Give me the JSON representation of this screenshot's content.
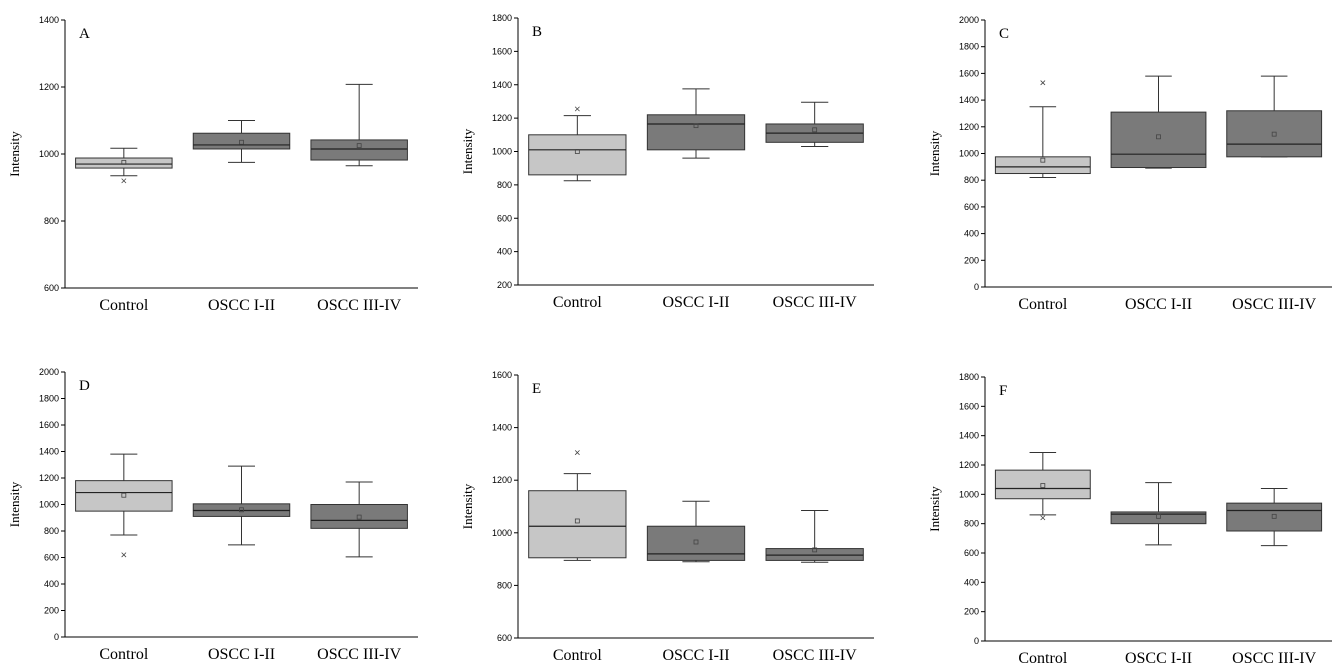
{
  "chart_data": [
    {
      "type": "box",
      "title": "A",
      "ylabel": "Intensity",
      "ylim": [
        600,
        1400
      ],
      "yticks": [
        600,
        800,
        1000,
        1200,
        1400
      ],
      "categories": [
        "Control",
        "OSCC I-II",
        "OSCC III-IV"
      ],
      "boxes": [
        {
          "category": "Control",
          "whisker_low": 935,
          "q1": 958,
          "median": 970,
          "q3": 988,
          "whisker_high": 1017,
          "mean": 975,
          "outliers": [
            920
          ],
          "shade": "light"
        },
        {
          "category": "OSCC I-II",
          "whisker_low": 975,
          "q1": 1015,
          "median": 1027,
          "q3": 1062,
          "whisker_high": 1100,
          "mean": 1035,
          "outliers": [],
          "shade": "dark"
        },
        {
          "category": "OSCC III-IV",
          "whisker_low": 965,
          "q1": 982,
          "median": 1015,
          "q3": 1042,
          "whisker_high": 1208,
          "mean": 1025,
          "outliers": [],
          "shade": "dark"
        }
      ]
    },
    {
      "type": "box",
      "title": "B",
      "ylabel": "Intensity",
      "ylim": [
        200,
        1800
      ],
      "yticks": [
        200,
        400,
        600,
        800,
        1000,
        1200,
        1400,
        1600,
        1800
      ],
      "categories": [
        "Control",
        "OSCC I-II",
        "OSCC III-IV"
      ],
      "boxes": [
        {
          "category": "Control",
          "whisker_low": 825,
          "q1": 860,
          "median": 1010,
          "q3": 1100,
          "whisker_high": 1215,
          "mean": 1000,
          "outliers": [
            1255
          ],
          "shade": "light"
        },
        {
          "category": "OSCC I-II",
          "whisker_low": 960,
          "q1": 1010,
          "median": 1165,
          "q3": 1220,
          "whisker_high": 1375,
          "mean": 1155,
          "outliers": [],
          "shade": "dark"
        },
        {
          "category": "OSCC III-IV",
          "whisker_low": 1030,
          "q1": 1055,
          "median": 1110,
          "q3": 1165,
          "whisker_high": 1295,
          "mean": 1130,
          "outliers": [],
          "shade": "dark"
        }
      ]
    },
    {
      "type": "box",
      "title": "C",
      "ylabel": "Intensity",
      "ylim": [
        0,
        2000
      ],
      "yticks": [
        0,
        200,
        400,
        600,
        800,
        1000,
        1200,
        1400,
        1600,
        1800,
        2000
      ],
      "categories": [
        "Control",
        "OSCC I-II",
        "OSCC III-IV"
      ],
      "boxes": [
        {
          "category": "Control",
          "whisker_low": 820,
          "q1": 850,
          "median": 900,
          "q3": 975,
          "whisker_high": 1350,
          "mean": 950,
          "outliers": [
            1530
          ],
          "shade": "light"
        },
        {
          "category": "OSCC I-II",
          "whisker_low": 890,
          "q1": 895,
          "median": 995,
          "q3": 1310,
          "whisker_high": 1580,
          "mean": 1125,
          "outliers": [],
          "shade": "dark"
        },
        {
          "category": "OSCC III-IV",
          "whisker_low": 975,
          "q1": 975,
          "median": 1070,
          "q3": 1320,
          "whisker_high": 1580,
          "mean": 1145,
          "outliers": [],
          "shade": "dark"
        }
      ]
    },
    {
      "type": "box",
      "title": "D",
      "ylabel": "Intensity",
      "ylim": [
        0,
        2000
      ],
      "yticks": [
        0,
        200,
        400,
        600,
        800,
        1000,
        1200,
        1400,
        1600,
        1800,
        2000
      ],
      "categories": [
        "Control",
        "OSCC I-II",
        "OSCC III-IV"
      ],
      "boxes": [
        {
          "category": "Control",
          "whisker_low": 770,
          "q1": 950,
          "median": 1090,
          "q3": 1180,
          "whisker_high": 1380,
          "mean": 1070,
          "outliers": [
            620
          ],
          "shade": "light"
        },
        {
          "category": "OSCC I-II",
          "whisker_low": 695,
          "q1": 910,
          "median": 955,
          "q3": 1005,
          "whisker_high": 1290,
          "mean": 960,
          "outliers": [],
          "shade": "dark"
        },
        {
          "category": "OSCC III-IV",
          "whisker_low": 605,
          "q1": 820,
          "median": 880,
          "q3": 1000,
          "whisker_high": 1170,
          "mean": 905,
          "outliers": [],
          "shade": "dark"
        }
      ]
    },
    {
      "type": "box",
      "title": "E",
      "ylabel": "Intensity",
      "ylim": [
        600,
        1600
      ],
      "yticks": [
        600,
        800,
        1000,
        1200,
        1400,
        1600
      ],
      "categories": [
        "Control",
        "OSCC I-II",
        "OSCC III-IV"
      ],
      "boxes": [
        {
          "category": "Control",
          "whisker_low": 895,
          "q1": 905,
          "median": 1025,
          "q3": 1160,
          "whisker_high": 1225,
          "mean": 1045,
          "outliers": [
            1305
          ],
          "shade": "light"
        },
        {
          "category": "OSCC I-II",
          "whisker_low": 890,
          "q1": 895,
          "median": 920,
          "q3": 1025,
          "whisker_high": 1120,
          "mean": 965,
          "outliers": [],
          "shade": "dark"
        },
        {
          "category": "OSCC III-IV",
          "whisker_low": 888,
          "q1": 895,
          "median": 915,
          "q3": 940,
          "whisker_high": 1085,
          "mean": 935,
          "outliers": [],
          "shade": "dark"
        }
      ]
    },
    {
      "type": "box",
      "title": "F",
      "ylabel": "Intensity",
      "ylim": [
        0,
        1800
      ],
      "yticks": [
        0,
        200,
        400,
        600,
        800,
        1000,
        1200,
        1400,
        1600,
        1800
      ],
      "categories": [
        "Control",
        "OSCC I-II",
        "OSCC III-IV"
      ],
      "boxes": [
        {
          "category": "Control",
          "whisker_low": 860,
          "q1": 970,
          "median": 1040,
          "q3": 1165,
          "whisker_high": 1285,
          "mean": 1060,
          "outliers": [
            840
          ],
          "shade": "light"
        },
        {
          "category": "OSCC I-II",
          "whisker_low": 655,
          "q1": 800,
          "median": 865,
          "q3": 880,
          "whisker_high": 1080,
          "mean": 850,
          "outliers": [],
          "shade": "dark"
        },
        {
          "category": "OSCC III-IV",
          "whisker_low": 650,
          "q1": 750,
          "median": 890,
          "q3": 940,
          "whisker_high": 1040,
          "mean": 850,
          "outliers": [],
          "shade": "dark"
        }
      ]
    }
  ],
  "colors": {
    "light_box": "#c6c6c6",
    "dark_box": "#7a7a7a",
    "stroke": "#333333",
    "median_line": "#222222"
  }
}
